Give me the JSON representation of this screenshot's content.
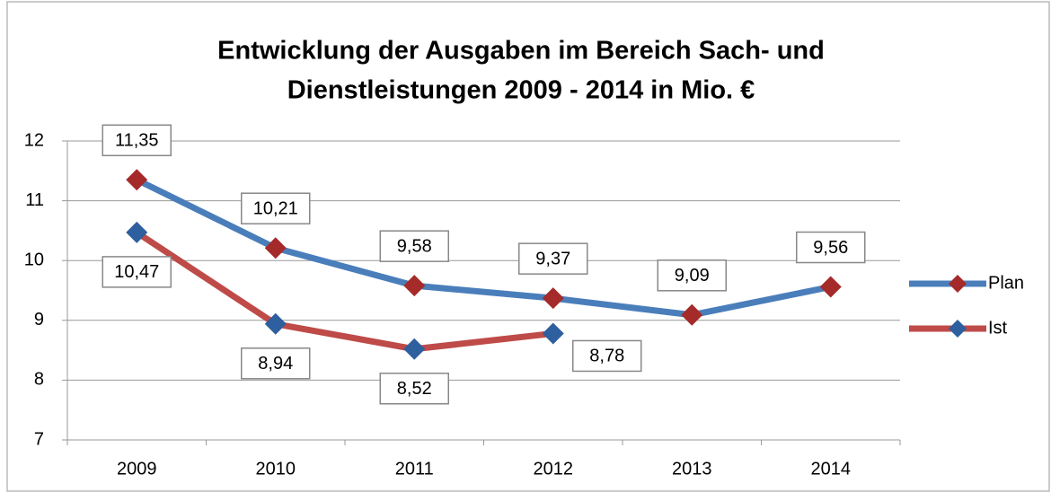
{
  "chart_data": {
    "type": "line",
    "title": [
      "Entwicklung der Ausgaben im Bereich Sach- und",
      "Dienstleistungen 2009 - 2014 in Mio. €"
    ],
    "categories": [
      "2009",
      "2010",
      "2011",
      "2012",
      "2013",
      "2014"
    ],
    "series": [
      {
        "name": "Plan",
        "color": "#4a7ebb",
        "marker_color": "#a52a2a",
        "values": [
          11.35,
          10.21,
          9.58,
          9.37,
          9.09,
          9.56
        ],
        "value_labels": [
          "11,35",
          "10,21",
          "9,58",
          "9,37",
          "9,09",
          "9,56"
        ]
      },
      {
        "name": "Ist",
        "color": "#be4b48",
        "marker_color": "#2e5f9e",
        "values": [
          10.47,
          8.94,
          8.52,
          8.78,
          null,
          null
        ],
        "value_labels": [
          "10,47",
          "8,94",
          "8,52",
          "8,78",
          null,
          null
        ]
      }
    ],
    "ylim": [
      7,
      12
    ],
    "yticks": [
      7,
      8,
      9,
      10,
      11,
      12
    ],
    "grid": true,
    "legend": "right"
  }
}
